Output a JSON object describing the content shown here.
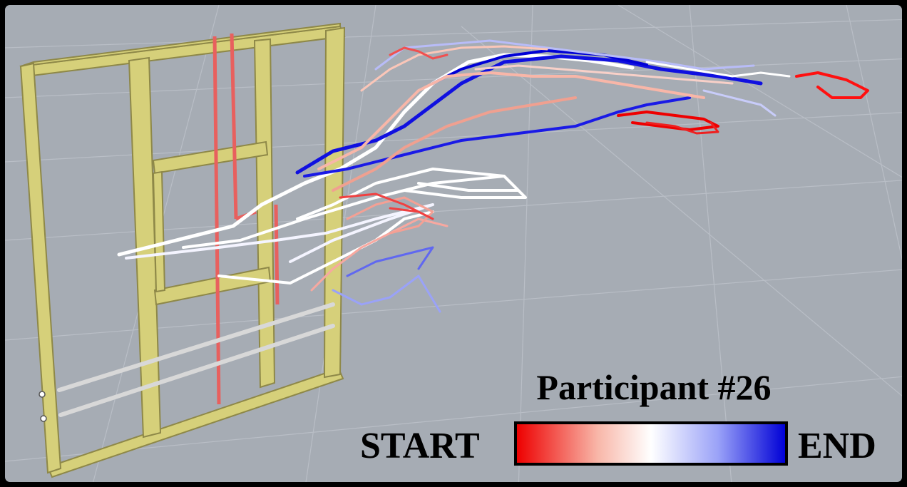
{
  "title": "Participant #26",
  "legend": {
    "start_label": "START",
    "end_label": "END",
    "gradient_colors": [
      "#ee0000",
      "#f8b6a8",
      "#ffffff",
      "#9aa2f8",
      "#0000d6"
    ]
  },
  "colors": {
    "background": "#a6acb4",
    "grid": "#b9bec6",
    "wall_frame": "#d6d07a",
    "wall_frame_edge": "#8e8848",
    "red_pipe": "#e8605e",
    "conduit": "#d8d8d8"
  },
  "icons": [
    "wall-frame-icon",
    "trajectory-lines-icon"
  ]
}
